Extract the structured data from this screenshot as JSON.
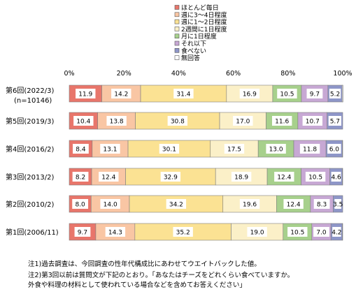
{
  "chart_data": {
    "type": "bar",
    "stacked": "100%",
    "orientation": "horizontal",
    "xlim": [
      0,
      100
    ],
    "x_ticks": [
      "0%",
      "20%",
      "40%",
      "60%",
      "80%",
      "100%"
    ],
    "grid": false,
    "legend_position": "top-right",
    "categories": [
      {
        "label": "第6回(2022/3)",
        "sublabel": "(n=10146)"
      },
      {
        "label": "第5回(2019/3)",
        "sublabel": ""
      },
      {
        "label": "第4回(2016/2)",
        "sublabel": ""
      },
      {
        "label": "第3回(2013/2)",
        "sublabel": ""
      },
      {
        "label": "第2回(2010/2)",
        "sublabel": ""
      },
      {
        "label": "第1回(2006/11)",
        "sublabel": ""
      }
    ],
    "series": [
      {
        "name": "ほとんど毎日",
        "color": "#e8766b",
        "values": [
          11.9,
          10.4,
          8.4,
          8.2,
          8.0,
          9.7
        ]
      },
      {
        "name": "週に3〜4日程度",
        "color": "#f9c6a4",
        "values": [
          14.2,
          13.8,
          13.1,
          12.4,
          14.0,
          14.3
        ]
      },
      {
        "name": "週に1〜2日程度",
        "color": "#fbe293",
        "values": [
          31.4,
          30.8,
          30.1,
          32.9,
          34.2,
          35.2
        ]
      },
      {
        "name": "2週間に1日程度",
        "color": "#fbf0c8",
        "values": [
          16.9,
          17.0,
          17.5,
          18.9,
          19.6,
          19.0
        ]
      },
      {
        "name": "月に1日程度",
        "color": "#a7d08c",
        "values": [
          10.5,
          11.6,
          13.0,
          12.4,
          12.4,
          10.5
        ]
      },
      {
        "name": "それ以下",
        "color": "#c7a8d4",
        "values": [
          9.7,
          10.7,
          11.8,
          10.5,
          8.3,
          7.0
        ]
      },
      {
        "name": "食べない",
        "color": "#8e96c8",
        "values": [
          5.2,
          5.7,
          6.0,
          4.6,
          3.5,
          4.2
        ]
      },
      {
        "name": "無回答",
        "color": "#ffffff",
        "values": [
          0.3,
          0.0,
          0.1,
          0.1,
          0.0,
          0.1
        ]
      }
    ],
    "value_label_series": [
      0,
      1,
      2,
      3,
      4,
      5,
      6
    ],
    "notes": [
      "注1)過去調査は、今回調査の性年代構成比にあわせてウエイトバックした値。",
      "注2)第3回以前は質問文が下記のとおり。「あなたはチーズをどれくらい食べていますか。",
      "外食や料理の材料として使われている場合などを含めてお答えください」"
    ]
  }
}
